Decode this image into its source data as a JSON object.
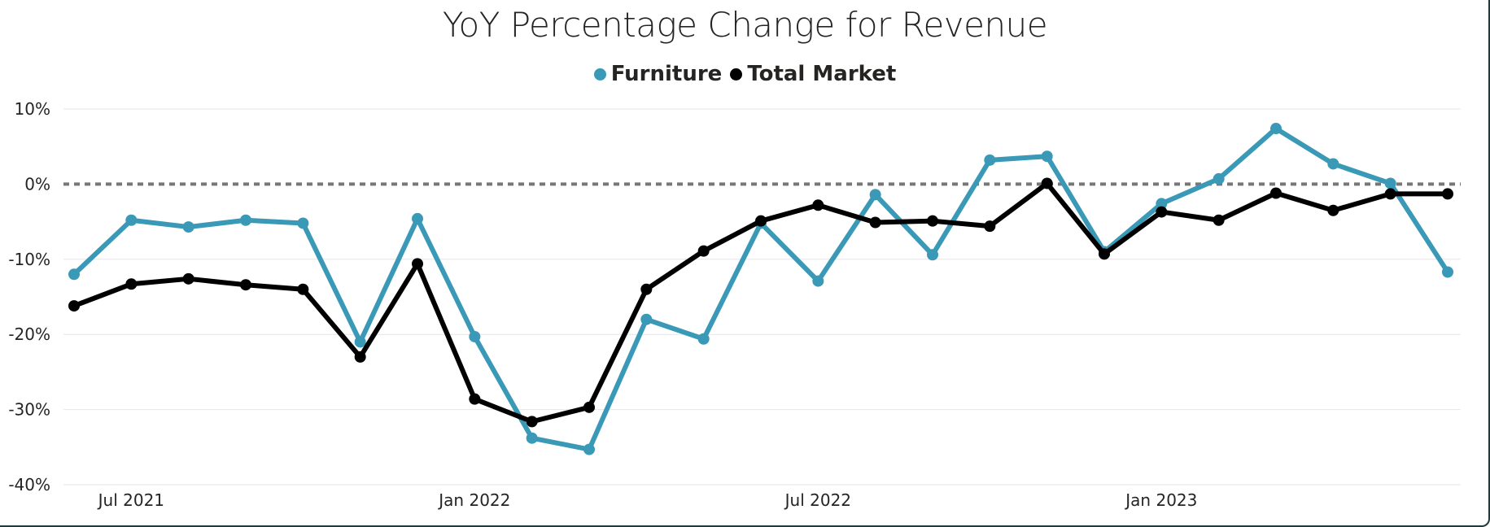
{
  "chart_data": {
    "type": "line",
    "title": "YoY Percentage Change for Revenue",
    "xlabel": "",
    "ylabel": "",
    "x": [
      "2021-06",
      "2021-07",
      "2021-08",
      "2021-09",
      "2021-10",
      "2021-11",
      "2021-12",
      "2022-01",
      "2022-02",
      "2022-03",
      "2022-04",
      "2022-05",
      "2022-06",
      "2022-07",
      "2022-08",
      "2022-09",
      "2022-10",
      "2022-11",
      "2022-12",
      "2023-01",
      "2023-02",
      "2023-03",
      "2023-04",
      "2023-05",
      "2023-06"
    ],
    "x_tick_labels": [
      {
        "at": "2021-07",
        "label": "Jul 2021"
      },
      {
        "at": "2022-01",
        "label": "Jan 2022"
      },
      {
        "at": "2022-07",
        "label": "Jul 2022"
      },
      {
        "at": "2023-01",
        "label": "Jan 2023"
      }
    ],
    "y_ticks": [
      10,
      0,
      -10,
      -20,
      -30,
      -40
    ],
    "y_tick_labels": [
      "10%",
      "0%",
      "-10%",
      "-20%",
      "-30%",
      "-40%"
    ],
    "ylim": [
      -40,
      10
    ],
    "grid": true,
    "reference_line": {
      "y": 0,
      "style": "dashed",
      "color": "#777777"
    },
    "legend_position": "top-center",
    "series": [
      {
        "name": "Furniture",
        "color": "#3a99b6",
        "values": [
          -12,
          -4.8,
          -5.7,
          -4.8,
          -5.2,
          -21,
          -4.6,
          -20.3,
          -33.8,
          -35.3,
          -18,
          -20.6,
          -5.2,
          -12.9,
          -1.4,
          -9.4,
          3.2,
          3.7,
          -9,
          -2.6,
          0.7,
          7.4,
          2.7,
          0.1,
          -11.7
        ]
      },
      {
        "name": "Total Market",
        "color": "#000000",
        "values": [
          -16.2,
          -13.3,
          -12.6,
          -13.4,
          -14,
          -23,
          -10.6,
          -28.6,
          -31.6,
          -29.7,
          -14,
          -8.9,
          -4.9,
          -2.8,
          -5.1,
          -4.9,
          -5.6,
          0.1,
          -9.3,
          -3.7,
          -4.8,
          -1.2,
          -3.5,
          -1.3,
          -1.3
        ]
      }
    ]
  }
}
